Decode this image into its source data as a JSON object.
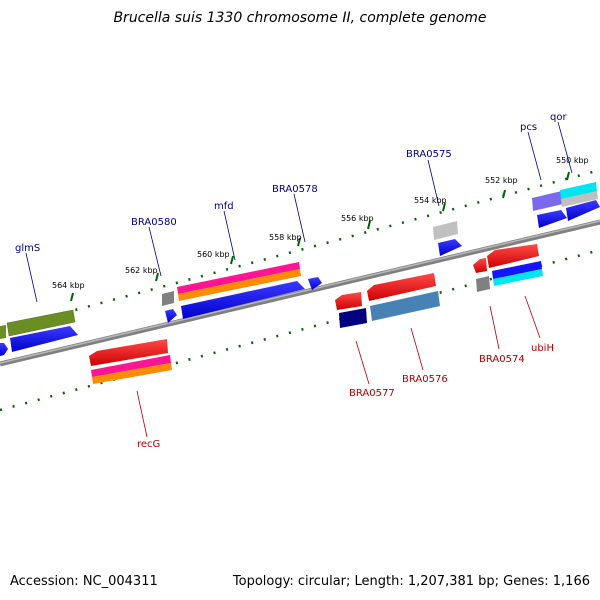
{
  "title": "Brucella suis 1330 chromosome II, complete genome",
  "footer": {
    "accession": "Accession: NC_004311",
    "stats": "Topology: circular; Length: 1,207,381 bp; Genes: 1,166"
  },
  "colors": {
    "forward_label": "#00008b",
    "reverse_label": "#b30000",
    "tick": "#006400",
    "backbone": "#808080"
  },
  "kbp_labels": [
    "550 kbp",
    "552 kbp",
    "554 kbp",
    "556 kbp",
    "558 kbp",
    "560 kbp",
    "562 kbp",
    "564 kbp"
  ],
  "gene_labels_forward": [
    "qor",
    "pcs",
    "BRA0575",
    "BRA0578",
    "mfd",
    "BRA0580",
    "glmS"
  ],
  "gene_labels_reverse": [
    "recG",
    "BRA0577",
    "BRA0576",
    "BRA0574",
    "ubiH"
  ]
}
